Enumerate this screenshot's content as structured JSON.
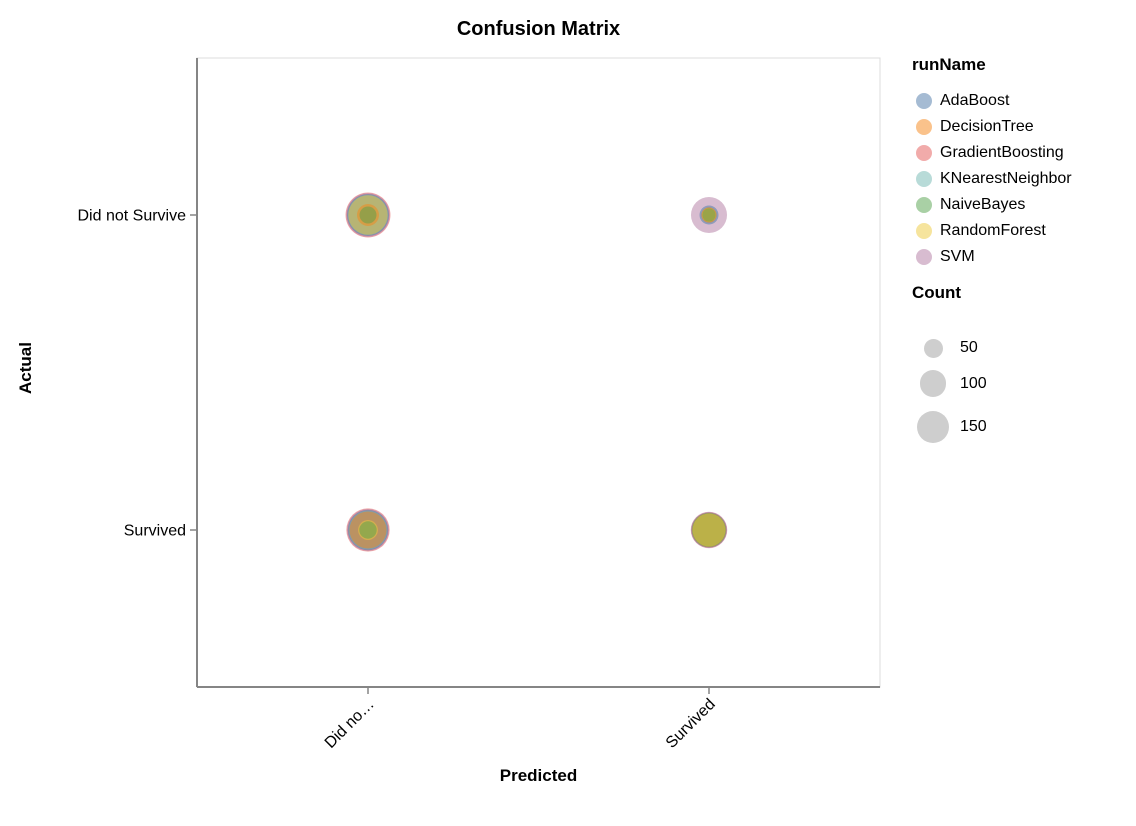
{
  "chart_data": {
    "type": "scatter",
    "mark": "circle",
    "title": "Confusion Matrix",
    "xlabel": "Predicted",
    "ylabel": "Actual",
    "x_categories": [
      "Did not Survive",
      "Survived"
    ],
    "x_tick_labels": [
      "Did no…",
      "Survived"
    ],
    "y_categories": [
      "Did not Survive",
      "Survived"
    ],
    "y_tick_labels": [
      "Did not Survive",
      "Survived"
    ],
    "grid": false,
    "legend_position": "right",
    "mark_opacity": 0.5,
    "size_scale": {
      "type": "sqrt",
      "radius_px_per_sqrt_count": 1.343
    },
    "color_legend": {
      "title": "runName",
      "items": [
        {
          "label": "AdaBoost",
          "color": "#4c78a8"
        },
        {
          "label": "DecisionTree",
          "color": "#f58518"
        },
        {
          "label": "GradientBoosting",
          "color": "#e45756"
        },
        {
          "label": "KNearestNeighbor",
          "color": "#72b7b2"
        },
        {
          "label": "NaiveBayes",
          "color": "#54a24b"
        },
        {
          "label": "RandomForest",
          "color": "#eeca3b"
        },
        {
          "label": "SVM",
          "color": "#b279a2"
        }
      ]
    },
    "size_legend": {
      "title": "Count",
      "ticks": [
        50,
        100,
        150
      ],
      "symbol_color": "#cecece"
    },
    "cells": [
      {
        "actual": "Did not Survive",
        "predicted": "Did not Survive",
        "counts": {
          "GradientBoosting": 280,
          "SVM": 265,
          "AdaBoost": 245,
          "KNearestNeighbor": 230,
          "RandomForest": 215,
          "DecisionTree": 67,
          "NaiveBayes": 40
        }
      },
      {
        "actual": "Did not Survive",
        "predicted": "Survived",
        "counts": {
          "SVM": 180,
          "AdaBoost": 50,
          "KNearestNeighbor": 38,
          "GradientBoosting": 33,
          "DecisionTree": 30,
          "RandomForest": 28,
          "NaiveBayes": 25
        }
      },
      {
        "actual": "Survived",
        "predicted": "Did not Survive",
        "counts": {
          "GradientBoosting": 260,
          "SVM": 245,
          "AdaBoost": 225,
          "KNearestNeighbor": 210,
          "DecisionTree": 190,
          "RandomForest": 55,
          "NaiveBayes": 42
        }
      },
      {
        "actual": "Survived",
        "predicted": "Survived",
        "counts": {
          "SVM": 185,
          "GradientBoosting": 178,
          "AdaBoost": 170,
          "KNearestNeighbor": 165,
          "DecisionTree": 160,
          "NaiveBayes": 155,
          "RandomForest": 150
        }
      }
    ]
  }
}
